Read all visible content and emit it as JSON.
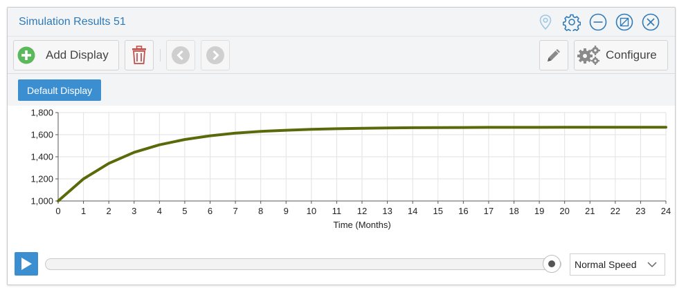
{
  "window": {
    "title": "Simulation Results 51"
  },
  "icons": {
    "pin": "map-pin-icon",
    "settings": "gear-icon",
    "minimize": "minus-circle-icon",
    "restore": "restore-icon",
    "close": "close-icon"
  },
  "toolbar": {
    "add_display_label": "Add Display",
    "configure_label": "Configure"
  },
  "tabs": [
    {
      "label": "Default Display",
      "active": true
    }
  ],
  "chart_data": {
    "type": "line",
    "xlabel": "Time (Months)",
    "ylabel": "",
    "xlim": [
      0,
      24
    ],
    "ylim": [
      1000,
      1800
    ],
    "x_ticks": [
      "0",
      "1",
      "2",
      "3",
      "4",
      "5",
      "6",
      "7",
      "8",
      "9",
      "10",
      "11",
      "12",
      "13",
      "14",
      "15",
      "16",
      "17",
      "18",
      "19",
      "20",
      "21",
      "22",
      "23",
      "24"
    ],
    "y_ticks": [
      "1,000",
      "1,200",
      "1,400",
      "1,600",
      "1,800"
    ],
    "grid": true,
    "series": [
      {
        "color": "#5a6a0a",
        "x": [
          0,
          1,
          2,
          3,
          4,
          5,
          6,
          7,
          8,
          9,
          10,
          11,
          12,
          13,
          14,
          15,
          16,
          17,
          18,
          19,
          20,
          21,
          22,
          23,
          24
        ],
        "y": [
          1000,
          1200,
          1340,
          1440,
          1508,
          1556,
          1590,
          1614,
          1630,
          1640,
          1648,
          1654,
          1658,
          1661,
          1663,
          1664,
          1665,
          1666,
          1666,
          1666,
          1667,
          1667,
          1667,
          1667,
          1667
        ]
      }
    ]
  },
  "playback": {
    "progress": 1.0,
    "speed_value": "Normal Speed"
  },
  "colors": {
    "accent": "#3b8fd0",
    "title": "#2e7ab8",
    "series": "#5a6a0a"
  }
}
